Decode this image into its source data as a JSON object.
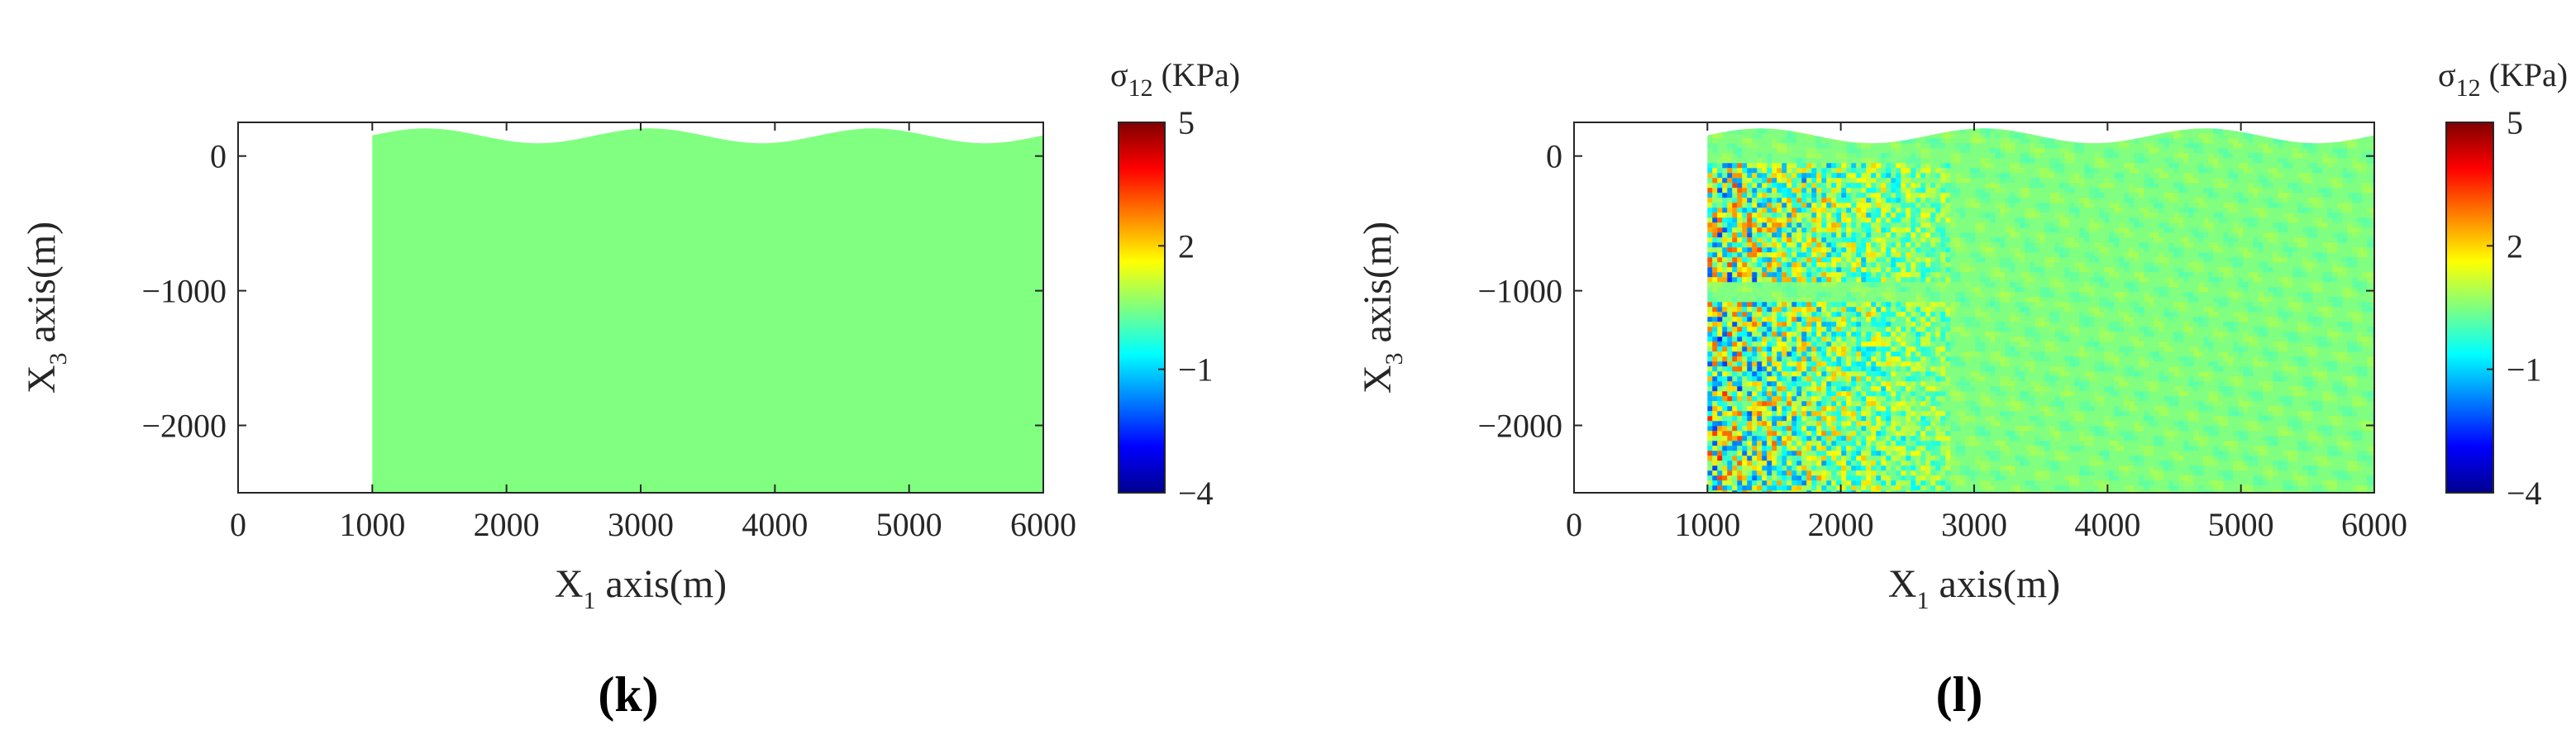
{
  "chart_data": [
    {
      "type": "heatmap",
      "panel_label": "(k)",
      "title": "",
      "xlabel": {
        "main": "X",
        "sub": "1",
        "rest": " axis(m)"
      },
      "ylabel": {
        "main": "X",
        "sub": "3",
        "rest": " axis(m)"
      },
      "xlim": [
        0,
        6000
      ],
      "ylim": [
        -2500,
        250
      ],
      "xticks": [
        0,
        1000,
        2000,
        3000,
        4000,
        5000,
        6000
      ],
      "yticks": [
        0,
        -1000,
        -2000
      ],
      "domain": {
        "x_start": 1000,
        "x_end": 6000,
        "bottom": -2500,
        "surface_mean": 150,
        "surface_amplitude": 55,
        "surface_period": 1666.7,
        "surface_crest_x": 1400
      },
      "field": "uniform",
      "field_value": 0.5,
      "colorbar": {
        "title_main": "σ",
        "title_sub": "12",
        "title_rest": " (KPa)",
        "min": -4,
        "max": 5,
        "ticks": [
          5,
          2,
          -1,
          -4
        ],
        "colormap": "jet"
      }
    },
    {
      "type": "heatmap",
      "panel_label": "(l)",
      "title": "",
      "xlabel": {
        "main": "X",
        "sub": "1",
        "rest": " axis(m)"
      },
      "ylabel": {
        "main": "X",
        "sub": "3",
        "rest": " axis(m)"
      },
      "xlim": [
        0,
        6000
      ],
      "ylim": [
        -2500,
        250
      ],
      "xticks": [
        0,
        1000,
        2000,
        3000,
        4000,
        5000,
        6000
      ],
      "yticks": [
        0,
        -1000,
        -2000
      ],
      "domain": {
        "x_start": 1000,
        "x_end": 6000,
        "bottom": -2500,
        "surface_mean": 150,
        "surface_amplitude": 55,
        "surface_period": 1666.7,
        "surface_crest_x": 1400
      },
      "field": "scattered-waves",
      "field_value": 0.5,
      "noise_bands": [
        {
          "x_from": 1000,
          "x_to": 2800,
          "y_from": -900,
          "y_to": -50,
          "strength": 1.0
        },
        {
          "x_from": 1000,
          "x_to": 2800,
          "y_from": -2500,
          "y_to": -1050,
          "strength": 1.0
        }
      ],
      "colorbar": {
        "title_main": "σ",
        "title_sub": "12",
        "title_rest": " (KPa)",
        "min": -4,
        "max": 5,
        "ticks": [
          5,
          2,
          -1,
          -4
        ],
        "colormap": "jet"
      }
    }
  ]
}
